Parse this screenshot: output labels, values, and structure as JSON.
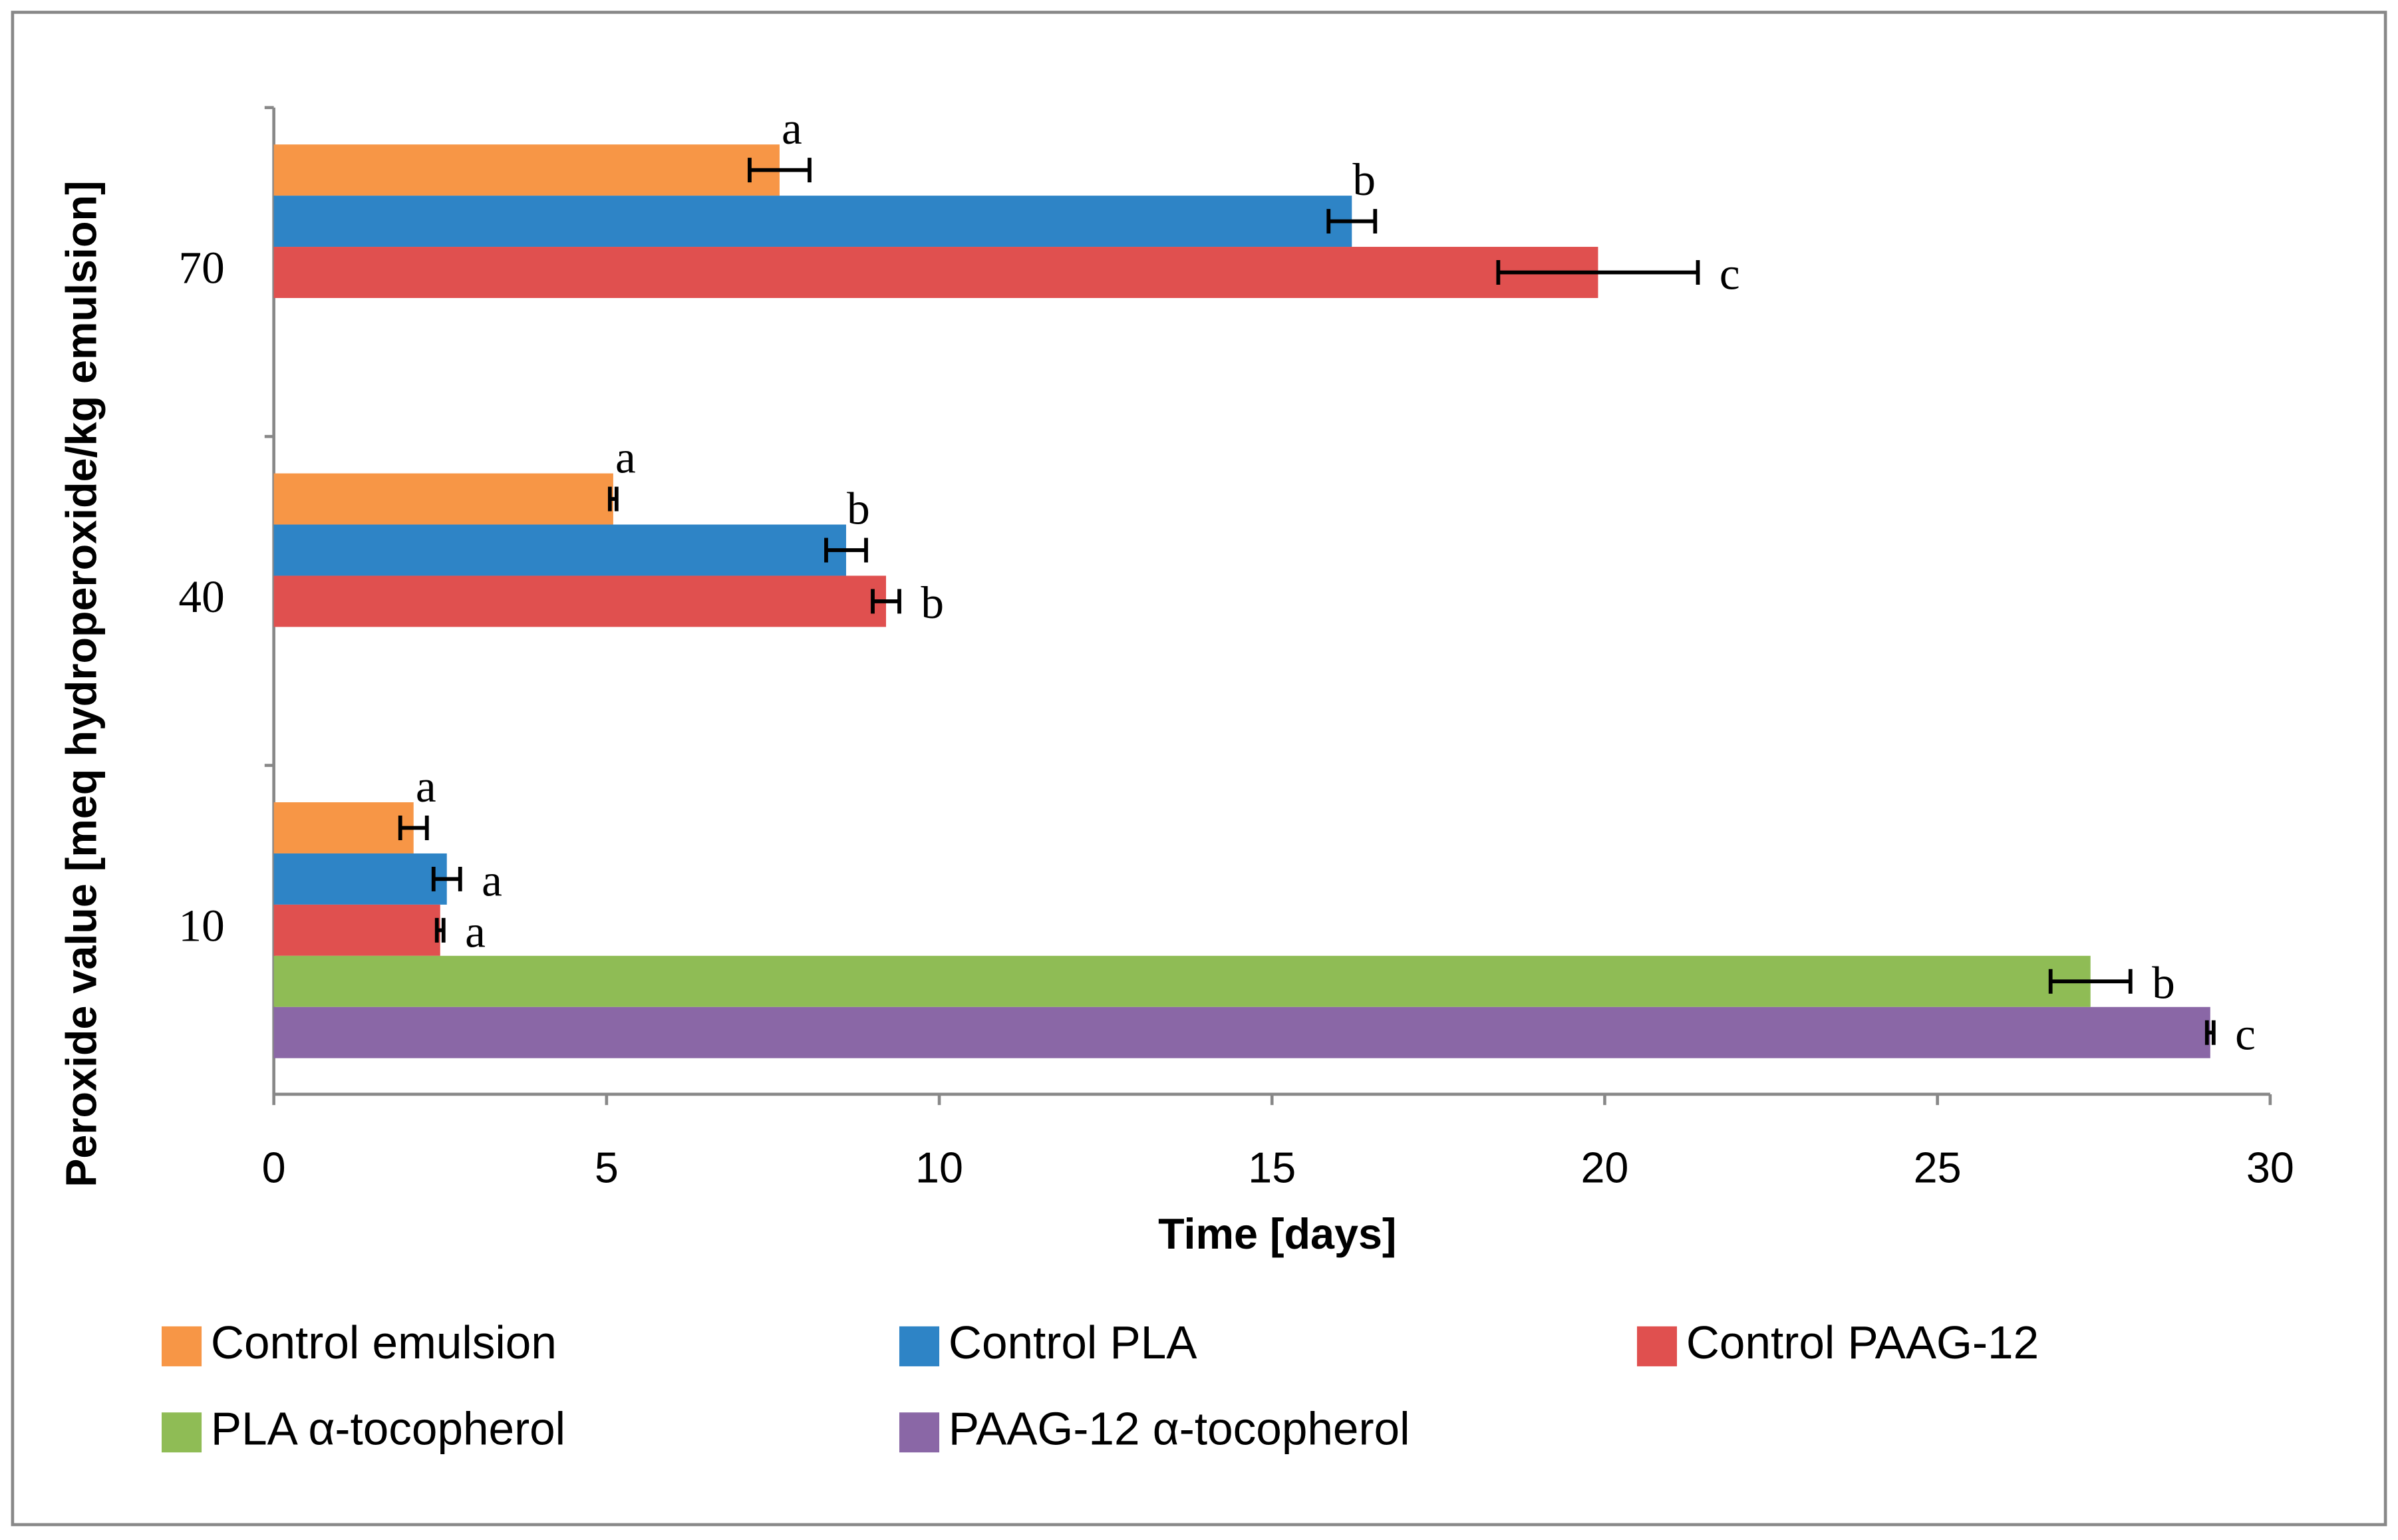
{
  "chart_data": {
    "type": "bar",
    "orientation": "horizontal",
    "x_label": "Time [days]",
    "y_label": "Peroxide value [meq hydroperoxide/kg emulsion]",
    "categories": [
      "10",
      "40",
      "70"
    ],
    "series": [
      {
        "name": "Control emulsion",
        "color": "#f79646",
        "values": [
          2.1,
          5.1,
          7.6
        ],
        "errors": [
          0.2,
          0.05,
          0.45
        ],
        "significance": [
          "a",
          "a",
          "a"
        ]
      },
      {
        "name": "Control PLA",
        "color": "#2e84c6",
        "values": [
          2.6,
          8.6,
          16.2
        ],
        "errors": [
          0.2,
          0.3,
          0.35
        ],
        "significance": [
          "a",
          "b",
          "b"
        ]
      },
      {
        "name": "Control PAAG-12",
        "color": "#e0504f",
        "values": [
          2.5,
          9.2,
          19.9
        ],
        "errors": [
          0.05,
          0.2,
          1.5
        ],
        "significance": [
          "a",
          "b",
          "c"
        ]
      },
      {
        "name": "PLA α-tocopherol",
        "color": "#8fbc55",
        "values": [
          27.3,
          null,
          null
        ],
        "errors": [
          0.6,
          null,
          null
        ],
        "significance": [
          "b",
          null,
          null
        ]
      },
      {
        "name": "PAAG-12 α-tocopherol",
        "color": "#8a67a6",
        "values": [
          29.1,
          null,
          null
        ],
        "errors": [
          0.05,
          null,
          null
        ],
        "significance": [
          "c",
          null,
          null
        ]
      }
    ],
    "xlim": [
      0,
      30
    ],
    "xticks": [
      0,
      5,
      10,
      15,
      20,
      25,
      30
    ],
    "legend": "bottom"
  }
}
